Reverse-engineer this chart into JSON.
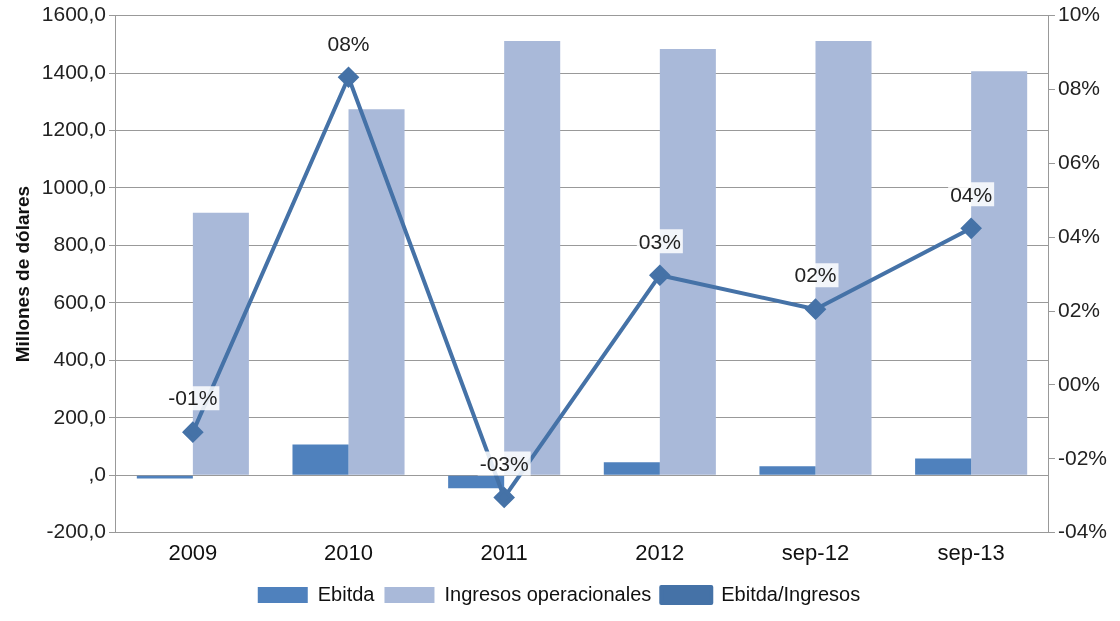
{
  "chart_data": {
    "type": "bar",
    "ylabel": "Millones de dólares",
    "categories": [
      "2009",
      "2010",
      "2011",
      "2012",
      "sep-12",
      "sep-13"
    ],
    "series": [
      {
        "name": "Ebitda",
        "color": "#4f81bd",
        "values": [
          -12,
          107,
          -46,
          45,
          31,
          58
        ]
      },
      {
        "name": "Ingresos operacionales",
        "color": "#a9b9d9",
        "values": [
          914,
          1274,
          1512,
          1484,
          1512,
          1406
        ]
      },
      {
        "name": "Ebitda/Ingresos",
        "type": "line",
        "axis": "y2",
        "color": "#4572a7",
        "marker": "diamond",
        "values": [
          -1.28,
          8.33,
          -3.05,
          2.97,
          2.05,
          4.24
        ],
        "value_labels": [
          "-01%",
          "08%",
          "-03%",
          "03%",
          "02%",
          "04%"
        ]
      }
    ],
    "ylim": [
      -200,
      1600
    ],
    "yticks": [
      {
        "value": -200,
        "label": "-200,0"
      },
      {
        "value": 0,
        "label": ",0"
      },
      {
        "value": 200,
        "label": "200,0"
      },
      {
        "value": 400,
        "label": "400,0"
      },
      {
        "value": 600,
        "label": "600,0"
      },
      {
        "value": 800,
        "label": "800,0"
      },
      {
        "value": 1000,
        "label": "1000,0"
      },
      {
        "value": 1200,
        "label": "1200,0"
      },
      {
        "value": 1400,
        "label": "1400,0"
      },
      {
        "value": 1600,
        "label": "1600,0"
      }
    ],
    "y2lim": [
      -4,
      10
    ],
    "y2ticks": [
      {
        "value": -4,
        "label": "-04%"
      },
      {
        "value": -2,
        "label": "-02%"
      },
      {
        "value": 0,
        "label": "00%"
      },
      {
        "value": 2,
        "label": "02%"
      },
      {
        "value": 4,
        "label": "04%"
      },
      {
        "value": 6,
        "label": "06%"
      },
      {
        "value": 8,
        "label": "08%"
      },
      {
        "value": 10,
        "label": "10%"
      }
    ],
    "grid": "y",
    "legend": "bottom"
  }
}
